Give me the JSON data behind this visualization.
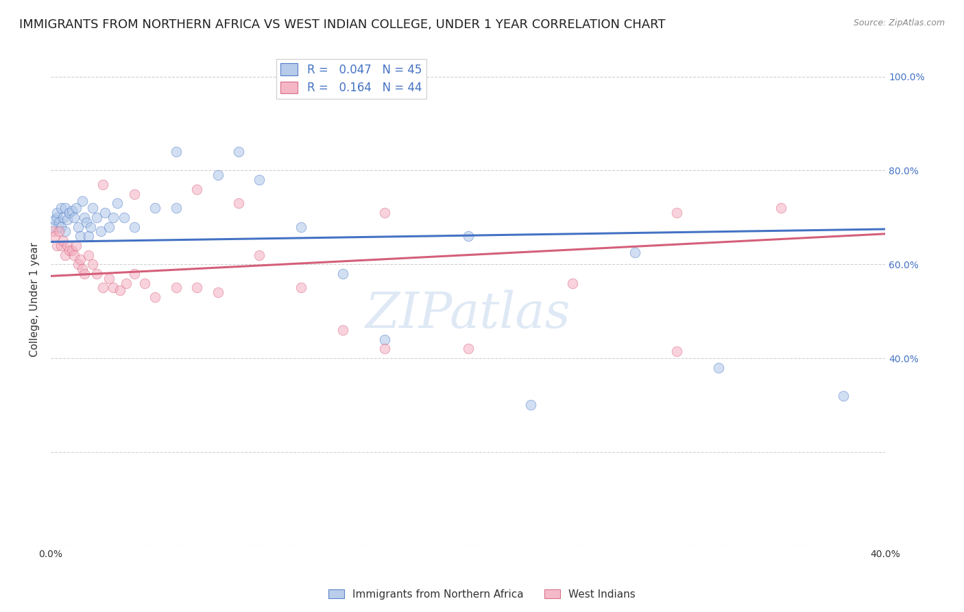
{
  "title": "IMMIGRANTS FROM NORTHERN AFRICA VS WEST INDIAN COLLEGE, UNDER 1 YEAR CORRELATION CHART",
  "source": "Source: ZipAtlas.com",
  "ylabel": "College, Under 1 year",
  "legend1_R": "0.047",
  "legend1_N": "45",
  "legend2_R": "0.164",
  "legend2_N": "44",
  "blue_color": "#aec6e8",
  "blue_line_color": "#4472c4",
  "pink_color": "#f4aec0",
  "pink_line_color": "#d45f7a",
  "watermark": "ZIPatlas",
  "blue_x": [
    0.001,
    0.002,
    0.003,
    0.003,
    0.004,
    0.005,
    0.005,
    0.006,
    0.007,
    0.007,
    0.008,
    0.009,
    0.01,
    0.011,
    0.012,
    0.013,
    0.014,
    0.015,
    0.016,
    0.017,
    0.018,
    0.019,
    0.02,
    0.022,
    0.024,
    0.026,
    0.028,
    0.03,
    0.032,
    0.035,
    0.04,
    0.05,
    0.06,
    0.08,
    0.1,
    0.12,
    0.14,
    0.2,
    0.28,
    0.32,
    0.38,
    0.06,
    0.09,
    0.16,
    0.23
  ],
  "blue_y": [
    0.68,
    0.695,
    0.7,
    0.71,
    0.69,
    0.72,
    0.68,
    0.7,
    0.67,
    0.72,
    0.695,
    0.71,
    0.715,
    0.7,
    0.72,
    0.68,
    0.66,
    0.735,
    0.7,
    0.69,
    0.66,
    0.68,
    0.72,
    0.7,
    0.67,
    0.71,
    0.68,
    0.7,
    0.73,
    0.7,
    0.68,
    0.72,
    0.72,
    0.79,
    0.78,
    0.68,
    0.58,
    0.66,
    0.625,
    0.38,
    0.32,
    0.84,
    0.84,
    0.44,
    0.3
  ],
  "pink_x": [
    0.001,
    0.002,
    0.003,
    0.004,
    0.005,
    0.006,
    0.007,
    0.008,
    0.009,
    0.01,
    0.011,
    0.012,
    0.013,
    0.014,
    0.015,
    0.016,
    0.018,
    0.02,
    0.022,
    0.025,
    0.028,
    0.03,
    0.033,
    0.036,
    0.04,
    0.045,
    0.05,
    0.06,
    0.07,
    0.08,
    0.1,
    0.12,
    0.14,
    0.16,
    0.2,
    0.25,
    0.3,
    0.35,
    0.3,
    0.16,
    0.09,
    0.07,
    0.04,
    0.025
  ],
  "pink_y": [
    0.67,
    0.66,
    0.64,
    0.67,
    0.64,
    0.65,
    0.62,
    0.64,
    0.63,
    0.63,
    0.62,
    0.64,
    0.6,
    0.61,
    0.59,
    0.58,
    0.62,
    0.6,
    0.58,
    0.55,
    0.57,
    0.55,
    0.545,
    0.56,
    0.58,
    0.56,
    0.53,
    0.55,
    0.55,
    0.54,
    0.62,
    0.55,
    0.46,
    0.42,
    0.42,
    0.56,
    0.71,
    0.72,
    0.415,
    0.71,
    0.73,
    0.76,
    0.75,
    0.77
  ],
  "xlim": [
    0.0,
    0.4
  ],
  "ylim": [
    0.0,
    1.05
  ],
  "blue_trend_y0": 0.648,
  "blue_trend_y1": 0.675,
  "pink_trend_y0": 0.575,
  "pink_trend_y1": 0.665,
  "x_ticks": [
    0.0,
    0.05,
    0.1,
    0.15,
    0.2,
    0.25,
    0.3,
    0.35,
    0.4
  ],
  "y_ticks": [
    0.0,
    0.2,
    0.4,
    0.6,
    0.8,
    1.0
  ],
  "marker_size": 110,
  "marker_alpha": 0.55,
  "line_width": 2.2,
  "background_color": "#ffffff",
  "title_fontsize": 13,
  "axis_label_fontsize": 11,
  "tick_fontsize": 10,
  "legend_fontsize": 12,
  "source_fontsize": 9
}
